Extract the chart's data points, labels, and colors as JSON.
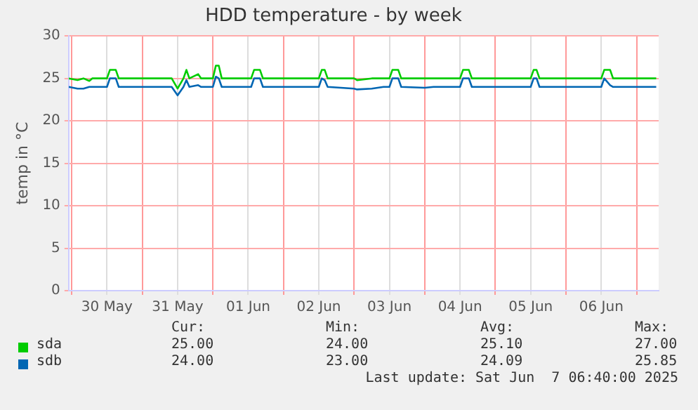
{
  "chart_data": {
    "type": "line",
    "title": "HDD temperature - by week",
    "ylabel": "temp in °C",
    "x": [
      "2025-05-29T23:00",
      "2025-05-30T02:00",
      "2025-05-30T04:00",
      "2025-05-30T06:00",
      "2025-05-30T07:00",
      "2025-05-30T12:00",
      "2025-05-30T13:00",
      "2025-05-30T15:00",
      "2025-05-30T16:00",
      "2025-05-31T10:00",
      "2025-05-31T12:00",
      "2025-05-31T14:00",
      "2025-05-31T15:00",
      "2025-05-31T16:00",
      "2025-05-31T19:00",
      "2025-05-31T20:00",
      "2025-06-01T00:00",
      "2025-06-01T01:00",
      "2025-06-01T02:00",
      "2025-06-01T03:00",
      "2025-06-01T13:00",
      "2025-06-01T14:00",
      "2025-06-01T16:00",
      "2025-06-01T17:00",
      "2025-06-02T12:00",
      "2025-06-02T13:00",
      "2025-06-02T14:00",
      "2025-06-02T15:00",
      "2025-06-03T00:00",
      "2025-06-03T01:00",
      "2025-06-03T06:00",
      "2025-06-03T10:00",
      "2025-06-03T12:00",
      "2025-06-03T13:00",
      "2025-06-03T15:00",
      "2025-06-03T16:00",
      "2025-06-04T00:00",
      "2025-06-04T03:00",
      "2025-06-04T12:00",
      "2025-06-04T13:00",
      "2025-06-04T15:00",
      "2025-06-04T16:00",
      "2025-06-05T12:00",
      "2025-06-05T13:00",
      "2025-06-05T14:00",
      "2025-06-05T15:00",
      "2025-06-06T12:00",
      "2025-06-06T13:00",
      "2025-06-06T15:00",
      "2025-06-06T16:00",
      "2025-06-07T06:40"
    ],
    "series": [
      {
        "name": "sda",
        "color": "#00cc00",
        "values": [
          25,
          24.8,
          25,
          24.7,
          25,
          25,
          26,
          26,
          25,
          25,
          23.8,
          25,
          26,
          25,
          25.5,
          25,
          25,
          26.5,
          26.5,
          25,
          25,
          26,
          26,
          25,
          25,
          26,
          26,
          25,
          25,
          24.8,
          25,
          25,
          25,
          26,
          26,
          25,
          25,
          25,
          25,
          26,
          26,
          25,
          25,
          26,
          26,
          25,
          25,
          26,
          26,
          25,
          25
        ]
      },
      {
        "name": "sdb",
        "color": "#0066b3",
        "values": [
          24,
          23.8,
          23.8,
          24,
          24,
          24,
          25,
          25,
          24,
          24,
          23,
          24,
          24.8,
          24,
          24.2,
          24,
          24,
          25.2,
          25,
          24,
          24,
          25,
          25,
          24,
          24,
          25,
          24.8,
          24,
          23.8,
          23.7,
          23.8,
          24,
          24,
          25,
          25,
          24,
          23.9,
          24,
          24,
          25,
          25,
          24,
          24,
          25,
          25,
          24,
          24,
          25,
          24.2,
          24,
          24
        ]
      }
    ],
    "xlim": [
      "2025-05-29T23:00",
      "2025-06-07T07:30"
    ],
    "xticks": [
      {
        "value": "2025-05-30T00:00",
        "label": null
      },
      {
        "value": "2025-05-30T12:00",
        "label": "30 May"
      },
      {
        "value": "2025-05-31T00:00",
        "label": null
      },
      {
        "value": "2025-05-31T12:00",
        "label": "31 May"
      },
      {
        "value": "2025-06-01T00:00",
        "label": null
      },
      {
        "value": "2025-06-01T12:00",
        "label": "01 Jun"
      },
      {
        "value": "2025-06-02T00:00",
        "label": null
      },
      {
        "value": "2025-06-02T12:00",
        "label": "02 Jun"
      },
      {
        "value": "2025-06-03T00:00",
        "label": null
      },
      {
        "value": "2025-06-03T12:00",
        "label": "03 Jun"
      },
      {
        "value": "2025-06-04T00:00",
        "label": null
      },
      {
        "value": "2025-06-04T12:00",
        "label": "04 Jun"
      },
      {
        "value": "2025-06-05T00:00",
        "label": null
      },
      {
        "value": "2025-06-05T12:00",
        "label": "05 Jun"
      },
      {
        "value": "2025-06-06T00:00",
        "label": null
      },
      {
        "value": "2025-06-06T12:00",
        "label": "06 Jun"
      },
      {
        "value": "2025-06-07T00:00",
        "label": null
      }
    ],
    "ylim": [
      0,
      30
    ],
    "yticks": [
      0,
      5,
      10,
      15,
      20,
      25,
      30
    ],
    "grid": true,
    "legend": "bottom",
    "marker": "none",
    "line_style": "solid",
    "annotations": [
      "Cur:",
      "Min:",
      "Avg:",
      "Max:",
      "25.00",
      "24.00",
      "25.10",
      "27.00",
      "24.00",
      "23.00",
      "24.09",
      "25.85",
      "Last update: Sat Jun  7 06:40:00 2025"
    ]
  }
}
